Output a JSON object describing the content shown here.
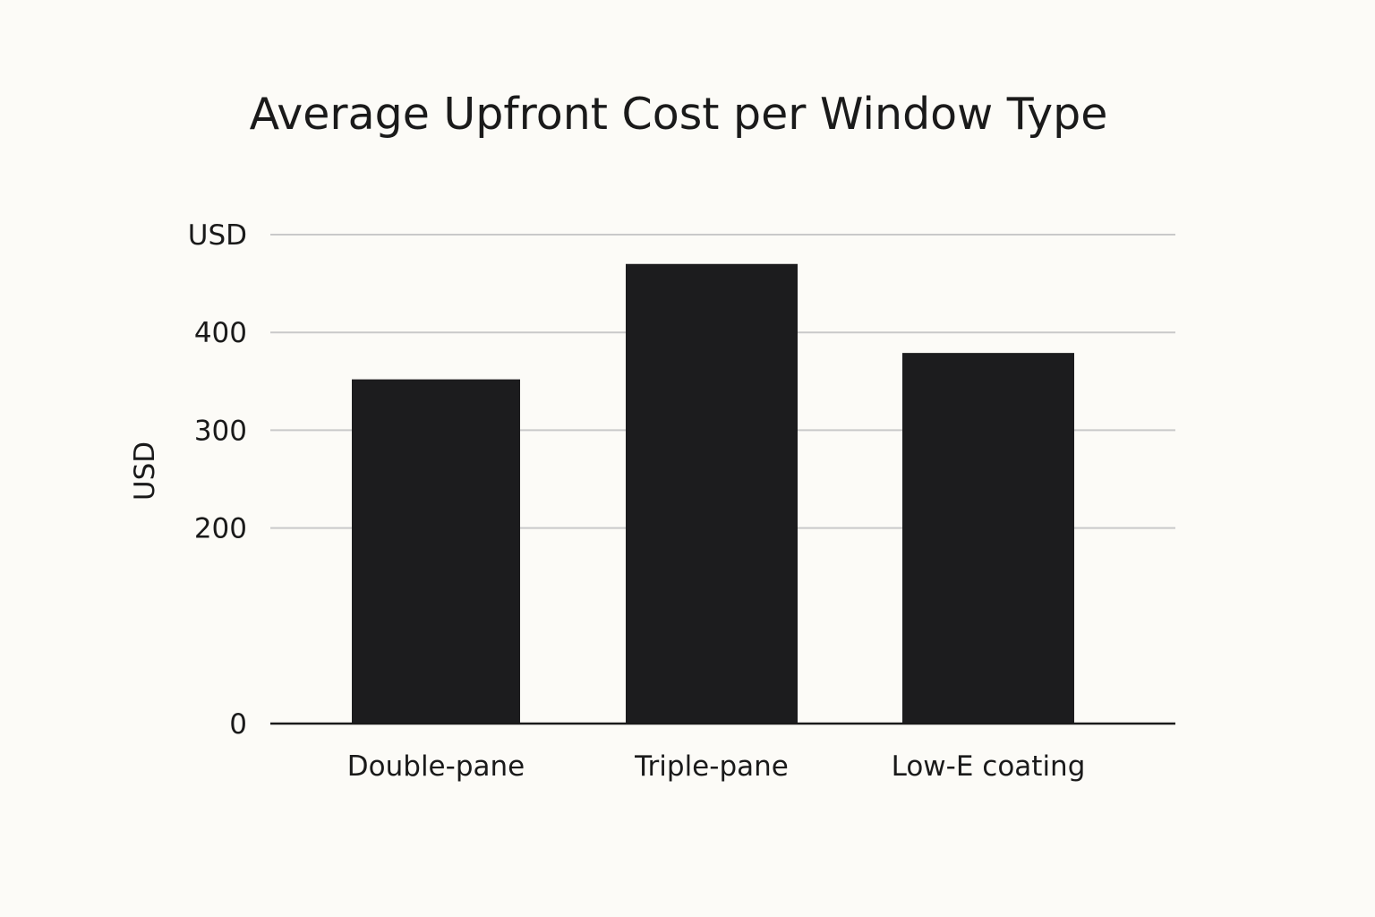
{
  "chart_data": {
    "type": "bar",
    "title": "Average Upfront Cost per Window Type",
    "xlabel": "",
    "ylabel": "USD",
    "categories": [
      "Double-pane",
      "Triple-pane",
      "Low-E coating"
    ],
    "values": [
      352,
      470,
      379
    ],
    "ylim": [
      0,
      500
    ],
    "y_ticks": [
      {
        "value": 0,
        "label": "0"
      },
      {
        "value": 200,
        "label": "200"
      },
      {
        "value": 300,
        "label": "300"
      },
      {
        "value": 400,
        "label": "400"
      },
      {
        "value": 500,
        "label": "USD"
      }
    ],
    "grid": true,
    "bar_color": "#1c1c1e",
    "grid_color": "#c9c9c9",
    "axis_color": "#1a1a1a",
    "background_color": "#fcfbf7"
  }
}
